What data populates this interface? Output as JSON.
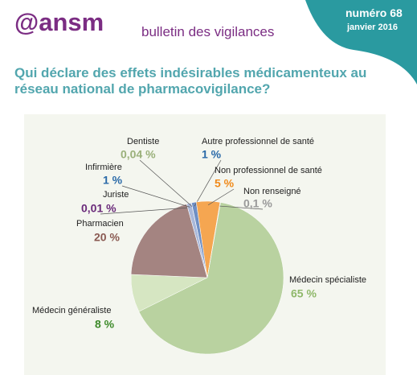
{
  "header": {
    "logo": "@ansm",
    "publication": "bulletin des vigilances",
    "issue": "numéro 68",
    "date": "janvier 2016"
  },
  "chart_data": {
    "type": "pie",
    "title": "Qui déclare des effets indésirables médicamenteux au réseau national de pharmacovigilance?",
    "categories": [
      "Médecin spécialiste",
      "Médecin généraliste",
      "Pharmacien",
      "Juriste",
      "Infirmière",
      "Dentiste",
      "Autre professionnel de santé",
      "Non professionnel de santé",
      "Non renseigné"
    ],
    "values": [
      65,
      8,
      20,
      0.01,
      1,
      0.04,
      1,
      5,
      0.1
    ],
    "value_labels": [
      "65 %",
      "8 %",
      "20 %",
      "0,01 %",
      "1 %",
      "0,04 %",
      "1 %",
      "5 %",
      "0,1 %"
    ],
    "colors": [
      "#b9d2a0",
      "#d6e6c2",
      "#a48481",
      "#c9b8d6",
      "#a9b8da",
      "#cfd6c4",
      "#6f8fc4",
      "#f5a651",
      "#d4d4d4"
    ]
  }
}
